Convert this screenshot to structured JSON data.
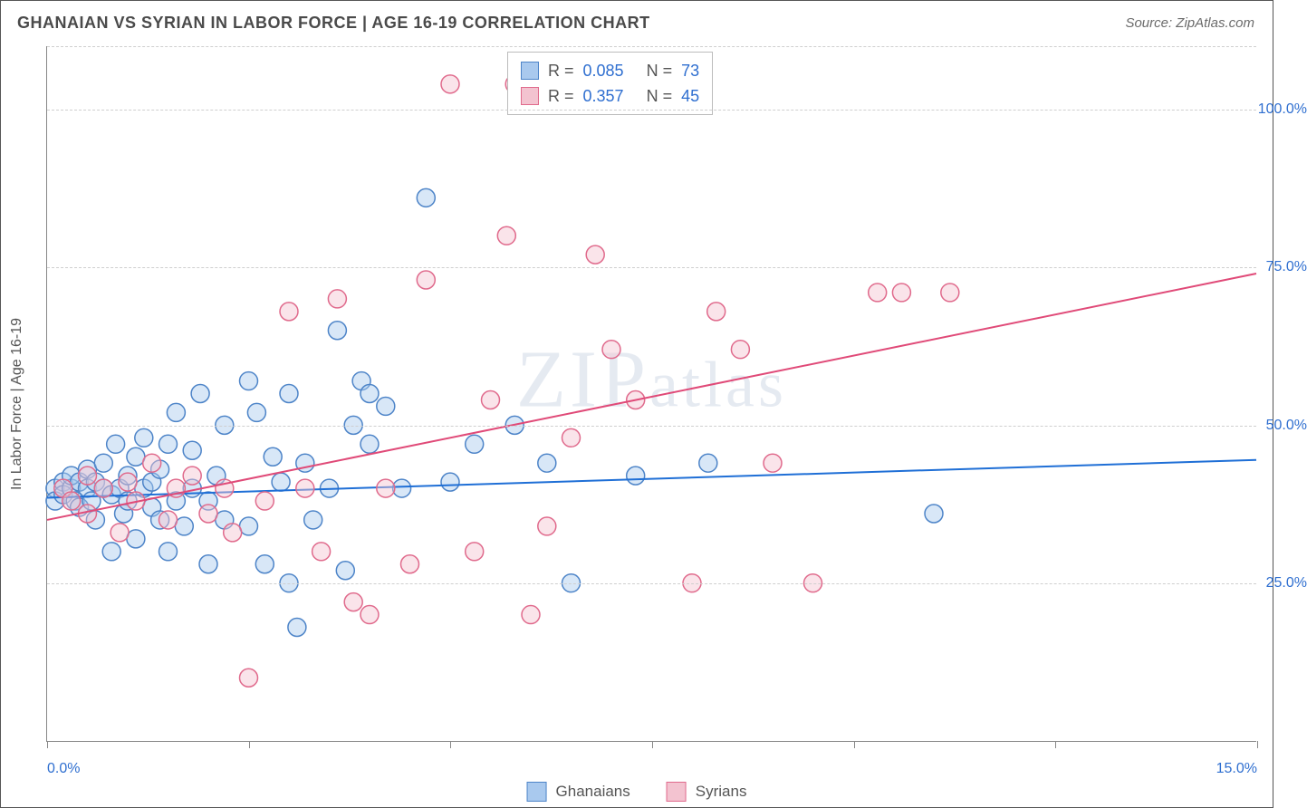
{
  "title": "GHANAIAN VS SYRIAN IN LABOR FORCE | AGE 16-19 CORRELATION CHART",
  "source": "Source: ZipAtlas.com",
  "watermark": "ZIPatlas",
  "y_axis_title": "In Labor Force | Age 16-19",
  "chart": {
    "type": "scatter",
    "background_color": "#ffffff",
    "grid_color": "#cfcfcf",
    "border_color": "#555555",
    "axis_color": "#888888",
    "tick_label_color": "#2f6fd0",
    "tick_fontsize": 16,
    "title_fontsize": 18,
    "marker_radius": 10,
    "marker_opacity": 0.45,
    "line_width": 2,
    "xlim": [
      0,
      15
    ],
    "ylim": [
      0,
      110
    ],
    "x_ticks": [
      0,
      2.5,
      5,
      7.5,
      10,
      12.5,
      15
    ],
    "x_tick_labels_shown": {
      "0": "0.0%",
      "15": "15.0%"
    },
    "y_ticks": [
      25,
      50,
      75,
      100
    ],
    "y_tick_labels": {
      "25": "25.0%",
      "50": "50.0%",
      "75": "75.0%",
      "100": "100.0%"
    }
  },
  "series": {
    "ghanaians": {
      "label": "Ghanaians",
      "fill": "#a9c9ee",
      "stroke": "#4d84c8",
      "line_color": "#1f6fd6",
      "R": "0.085",
      "N": "73",
      "trend": {
        "x1": 0,
        "y1": 38.5,
        "x2": 15,
        "y2": 44.5
      },
      "points": [
        [
          0.1,
          40
        ],
        [
          0.1,
          38
        ],
        [
          0.2,
          41
        ],
        [
          0.2,
          39
        ],
        [
          0.3,
          40
        ],
        [
          0.3,
          42
        ],
        [
          0.35,
          38
        ],
        [
          0.4,
          41
        ],
        [
          0.4,
          37
        ],
        [
          0.5,
          40
        ],
        [
          0.5,
          43
        ],
        [
          0.55,
          38
        ],
        [
          0.6,
          41
        ],
        [
          0.6,
          35
        ],
        [
          0.7,
          40
        ],
        [
          0.7,
          44
        ],
        [
          0.8,
          39
        ],
        [
          0.8,
          30
        ],
        [
          0.85,
          47
        ],
        [
          0.9,
          40
        ],
        [
          0.95,
          36
        ],
        [
          1.0,
          42
        ],
        [
          1.0,
          38
        ],
        [
          1.1,
          45
        ],
        [
          1.1,
          32
        ],
        [
          1.2,
          40
        ],
        [
          1.2,
          48
        ],
        [
          1.3,
          37
        ],
        [
          1.3,
          41
        ],
        [
          1.4,
          35
        ],
        [
          1.4,
          43
        ],
        [
          1.5,
          30
        ],
        [
          1.5,
          47
        ],
        [
          1.6,
          38
        ],
        [
          1.6,
          52
        ],
        [
          1.7,
          34
        ],
        [
          1.8,
          40
        ],
        [
          1.8,
          46
        ],
        [
          1.9,
          55
        ],
        [
          2.0,
          38
        ],
        [
          2.0,
          28
        ],
        [
          2.1,
          42
        ],
        [
          2.2,
          35
        ],
        [
          2.2,
          50
        ],
        [
          2.5,
          34
        ],
        [
          2.5,
          57
        ],
        [
          2.6,
          52
        ],
        [
          2.7,
          28
        ],
        [
          2.8,
          45
        ],
        [
          2.9,
          41
        ],
        [
          3.0,
          25
        ],
        [
          3.0,
          55
        ],
        [
          3.1,
          18
        ],
        [
          3.2,
          44
        ],
        [
          3.3,
          35
        ],
        [
          3.5,
          40
        ],
        [
          3.6,
          65
        ],
        [
          3.7,
          27
        ],
        [
          3.8,
          50
        ],
        [
          3.9,
          57
        ],
        [
          4.0,
          47
        ],
        [
          4.0,
          55
        ],
        [
          4.2,
          53
        ],
        [
          4.4,
          40
        ],
        [
          4.7,
          86
        ],
        [
          5.0,
          41
        ],
        [
          5.3,
          47
        ],
        [
          5.8,
          50
        ],
        [
          6.2,
          44
        ],
        [
          6.5,
          25
        ],
        [
          7.3,
          42
        ],
        [
          8.2,
          44
        ],
        [
          11.0,
          36
        ]
      ]
    },
    "syrians": {
      "label": "Syrians",
      "fill": "#f3c3d0",
      "stroke": "#e06a8c",
      "line_color": "#e04a78",
      "R": "0.357",
      "N": "45",
      "trend": {
        "x1": 0,
        "y1": 35,
        "x2": 15,
        "y2": 74
      },
      "points": [
        [
          0.2,
          40
        ],
        [
          0.3,
          38
        ],
        [
          0.5,
          42
        ],
        [
          0.5,
          36
        ],
        [
          0.7,
          40
        ],
        [
          0.9,
          33
        ],
        [
          1.0,
          41
        ],
        [
          1.1,
          38
        ],
        [
          1.3,
          44
        ],
        [
          1.5,
          35
        ],
        [
          1.6,
          40
        ],
        [
          1.8,
          42
        ],
        [
          2.0,
          36
        ],
        [
          2.2,
          40
        ],
        [
          2.3,
          33
        ],
        [
          2.5,
          10
        ],
        [
          2.7,
          38
        ],
        [
          3.0,
          68
        ],
        [
          3.2,
          40
        ],
        [
          3.4,
          30
        ],
        [
          3.6,
          70
        ],
        [
          3.8,
          22
        ],
        [
          4.0,
          20
        ],
        [
          4.2,
          40
        ],
        [
          4.5,
          28
        ],
        [
          4.7,
          73
        ],
        [
          5.0,
          104
        ],
        [
          5.3,
          30
        ],
        [
          5.5,
          54
        ],
        [
          5.7,
          80
        ],
        [
          5.8,
          104
        ],
        [
          6.0,
          20
        ],
        [
          6.2,
          34
        ],
        [
          6.5,
          48
        ],
        [
          6.8,
          77
        ],
        [
          7.0,
          62
        ],
        [
          7.3,
          54
        ],
        [
          8.0,
          25
        ],
        [
          8.3,
          68
        ],
        [
          8.6,
          62
        ],
        [
          9.0,
          44
        ],
        [
          9.5,
          25
        ],
        [
          10.3,
          71
        ],
        [
          10.6,
          71
        ],
        [
          11.2,
          71
        ]
      ]
    }
  },
  "stats_box": {
    "labels": {
      "R": "R =",
      "N": "N ="
    }
  },
  "legend_bottom": [
    "ghanaians",
    "syrians"
  ]
}
